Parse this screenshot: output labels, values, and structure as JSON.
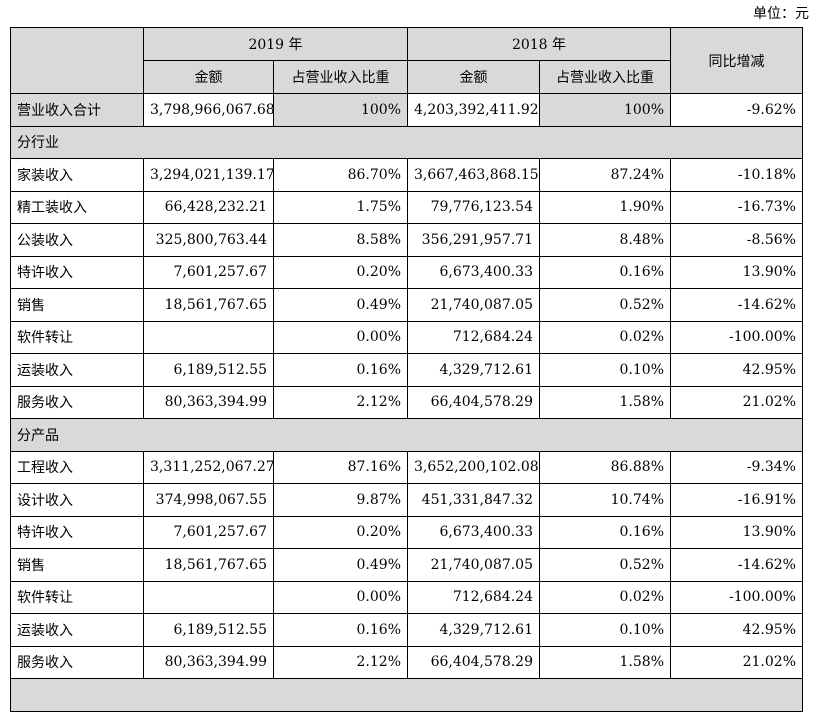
{
  "unit_label": "单位：元",
  "header": {
    "year_2019": "2019 年",
    "year_2018": "2018 年",
    "amount": "金额",
    "ratio": "占营业收入比重",
    "yoy": "同比增减"
  },
  "total_row": {
    "label": "营业收入合计",
    "amount_2019": "3,798,966,067.68",
    "ratio_2019": "100%",
    "amount_2018": "4,203,392,411.92",
    "ratio_2018": "100%",
    "yoy": "-9.62%"
  },
  "section_industry": "分行业",
  "industry_rows": [
    {
      "label": "家装收入",
      "amount_2019": "3,294,021,139.17",
      "ratio_2019": "86.70%",
      "amount_2018": "3,667,463,868.15",
      "ratio_2018": "87.24%",
      "yoy": "-10.18%"
    },
    {
      "label": "精工装收入",
      "amount_2019": "66,428,232.21",
      "ratio_2019": "1.75%",
      "amount_2018": "79,776,123.54",
      "ratio_2018": "1.90%",
      "yoy": "-16.73%"
    },
    {
      "label": "公装收入",
      "amount_2019": "325,800,763.44",
      "ratio_2019": "8.58%",
      "amount_2018": "356,291,957.71",
      "ratio_2018": "8.48%",
      "yoy": "-8.56%"
    },
    {
      "label": "特许收入",
      "amount_2019": "7,601,257.67",
      "ratio_2019": "0.20%",
      "amount_2018": "6,673,400.33",
      "ratio_2018": "0.16%",
      "yoy": "13.90%"
    },
    {
      "label": "销售",
      "amount_2019": "18,561,767.65",
      "ratio_2019": "0.49%",
      "amount_2018": "21,740,087.05",
      "ratio_2018": "0.52%",
      "yoy": "-14.62%"
    },
    {
      "label": "软件转让",
      "amount_2019": "",
      "ratio_2019": "0.00%",
      "amount_2018": "712,684.24",
      "ratio_2018": "0.02%",
      "yoy": "-100.00%"
    },
    {
      "label": "运装收入",
      "amount_2019": "6,189,512.55",
      "ratio_2019": "0.16%",
      "amount_2018": "4,329,712.61",
      "ratio_2018": "0.10%",
      "yoy": "42.95%"
    },
    {
      "label": "服务收入",
      "amount_2019": "80,363,394.99",
      "ratio_2019": "2.12%",
      "amount_2018": "66,404,578.29",
      "ratio_2018": "1.58%",
      "yoy": "21.02%"
    }
  ],
  "section_product": "分产品",
  "product_rows": [
    {
      "label": "工程收入",
      "amount_2019": "3,311,252,067.27",
      "ratio_2019": "87.16%",
      "amount_2018": "3,652,200,102.08",
      "ratio_2018": "86.88%",
      "yoy": "-9.34%"
    },
    {
      "label": "设计收入",
      "amount_2019": "374,998,067.55",
      "ratio_2019": "9.87%",
      "amount_2018": "451,331,847.32",
      "ratio_2018": "10.74%",
      "yoy": "-16.91%"
    },
    {
      "label": "特许收入",
      "amount_2019": "7,601,257.67",
      "ratio_2019": "0.20%",
      "amount_2018": "6,673,400.33",
      "ratio_2018": "0.16%",
      "yoy": "13.90%"
    },
    {
      "label": "销售",
      "amount_2019": "18,561,767.65",
      "ratio_2019": "0.49%",
      "amount_2018": "21,740,087.05",
      "ratio_2018": "0.52%",
      "yoy": "-14.62%"
    },
    {
      "label": "软件转让",
      "amount_2019": "",
      "ratio_2019": "0.00%",
      "amount_2018": "712,684.24",
      "ratio_2018": "0.02%",
      "yoy": "-100.00%"
    },
    {
      "label": "运装收入",
      "amount_2019": "6,189,512.55",
      "ratio_2019": "0.16%",
      "amount_2018": "4,329,712.61",
      "ratio_2018": "0.10%",
      "yoy": "42.95%"
    },
    {
      "label": "服务收入",
      "amount_2019": "80,363,394.99",
      "ratio_2019": "2.12%",
      "amount_2018": "66,404,578.29",
      "ratio_2018": "1.58%",
      "yoy": "21.02%"
    }
  ],
  "colors": {
    "header_shade": "#d9d9d9",
    "border": "#000000"
  }
}
